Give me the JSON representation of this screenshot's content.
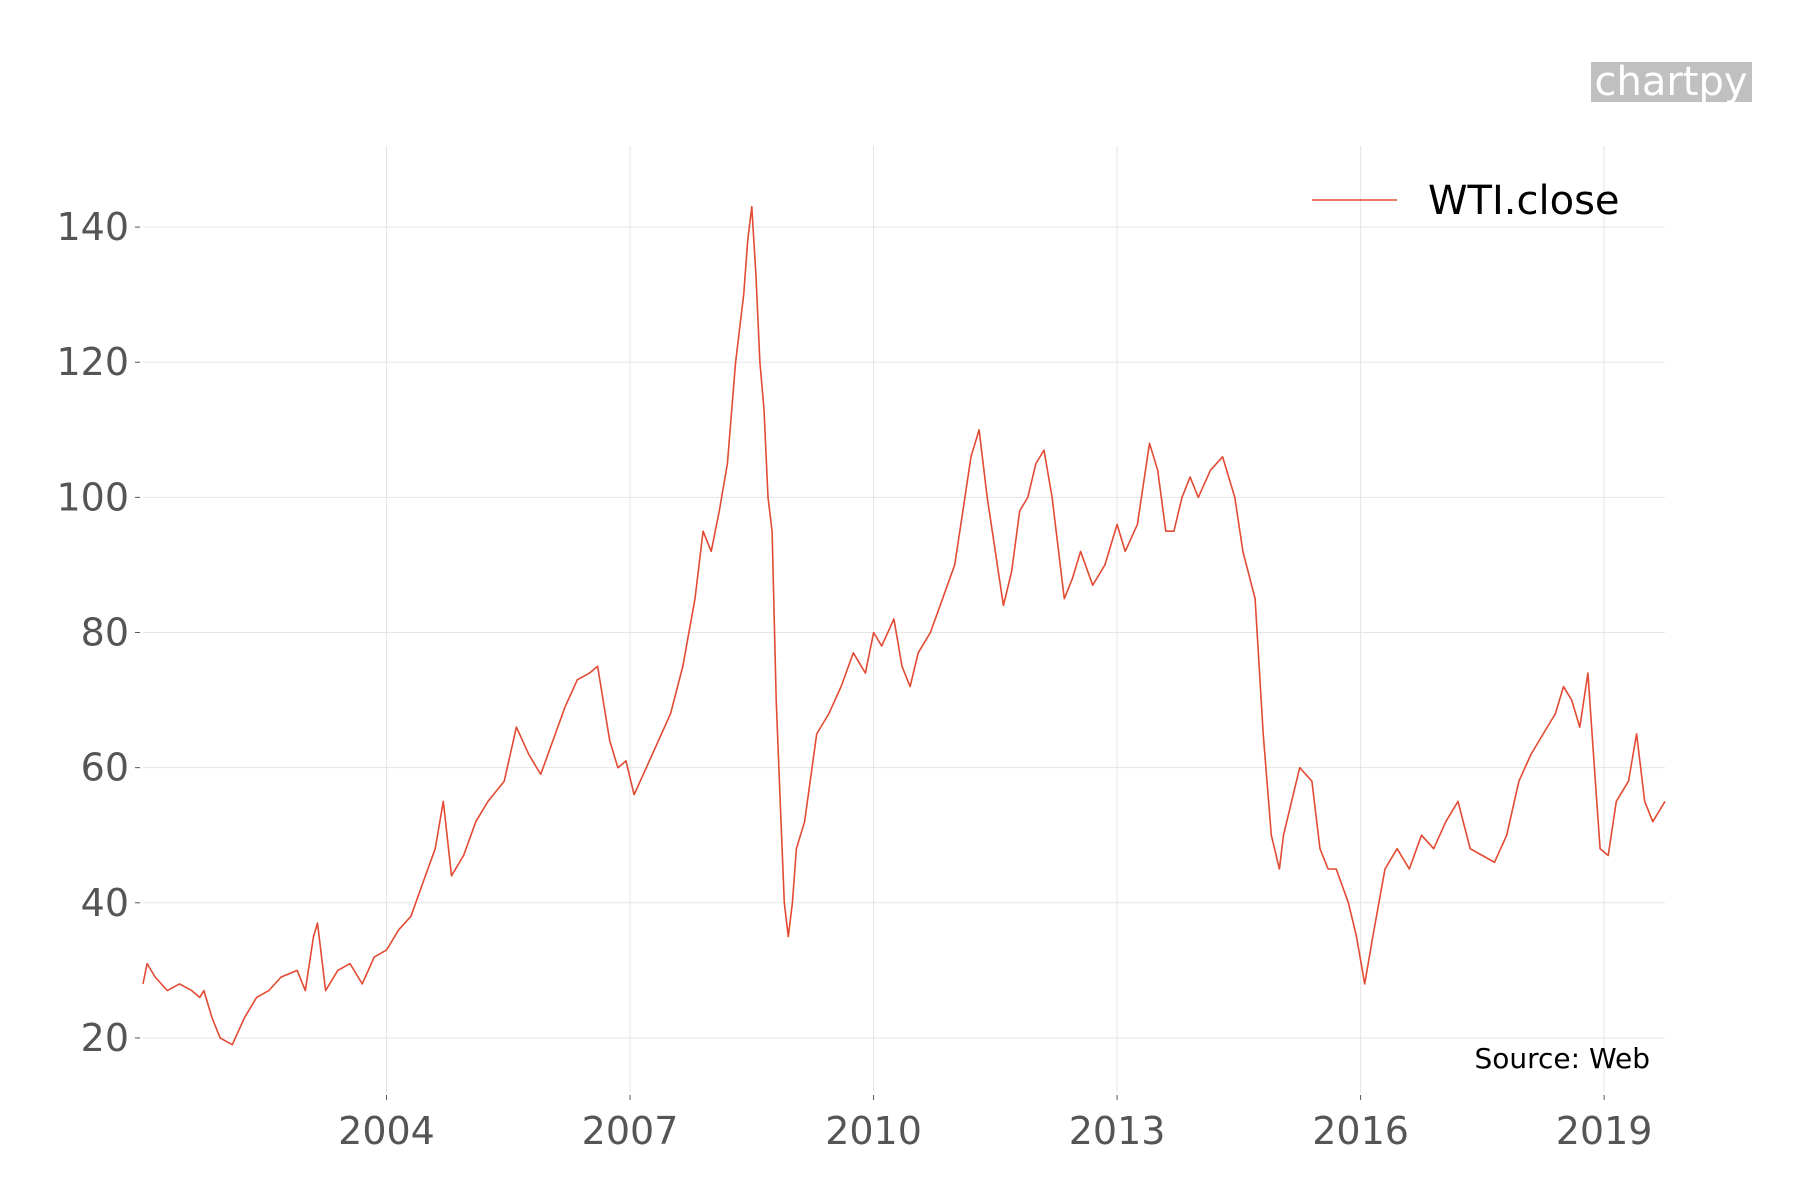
{
  "watermark": "chartpy",
  "source": "Source: Web",
  "colors": {
    "series": "#e34a33",
    "grid": "#e5e5e5",
    "tick_text": "#555555",
    "watermark_bg": "#c0c0c0"
  },
  "chart_data": {
    "type": "line",
    "title": "",
    "xlabel": "",
    "ylabel": "",
    "xlim": [
      2001.0,
      2019.75
    ],
    "ylim": [
      12,
      152
    ],
    "x_ticks": [
      2004,
      2007,
      2010,
      2013,
      2016,
      2019
    ],
    "x_tick_labels": [
      "2004",
      "2007",
      "2010",
      "2013",
      "2016",
      "2019"
    ],
    "y_ticks": [
      20,
      40,
      60,
      80,
      100,
      120,
      140
    ],
    "y_tick_labels": [
      "20",
      "40",
      "60",
      "80",
      "100",
      "120",
      "140"
    ],
    "grid": true,
    "legend": {
      "position": "top-right",
      "entries": [
        "WTI.close"
      ]
    },
    "series": [
      {
        "name": "WTI.close",
        "x": [
          2001.0,
          2001.05,
          2001.15,
          2001.3,
          2001.45,
          2001.6,
          2001.7,
          2001.75,
          2001.85,
          2001.95,
          2002.1,
          2002.25,
          2002.4,
          2002.55,
          2002.7,
          2002.9,
          2003.0,
          2003.1,
          2003.15,
          2003.25,
          2003.4,
          2003.55,
          2003.7,
          2003.85,
          2004.0,
          2004.15,
          2004.3,
          2004.45,
          2004.6,
          2004.7,
          2004.8,
          2004.95,
          2005.1,
          2005.25,
          2005.45,
          2005.6,
          2005.75,
          2005.9,
          2006.05,
          2006.2,
          2006.35,
          2006.5,
          2006.6,
          2006.75,
          2006.85,
          2006.95,
          2007.05,
          2007.2,
          2007.35,
          2007.5,
          2007.65,
          2007.8,
          2007.9,
          2008.0,
          2008.1,
          2008.2,
          2008.3,
          2008.4,
          2008.45,
          2008.5,
          2008.55,
          2008.6,
          2008.65,
          2008.7,
          2008.75,
          2008.8,
          2008.85,
          2008.9,
          2008.95,
          2009.0,
          2009.05,
          2009.15,
          2009.3,
          2009.45,
          2009.6,
          2009.75,
          2009.9,
          2010.0,
          2010.1,
          2010.25,
          2010.35,
          2010.45,
          2010.55,
          2010.7,
          2010.85,
          2011.0,
          2011.1,
          2011.2,
          2011.3,
          2011.4,
          2011.5,
          2011.6,
          2011.7,
          2011.8,
          2011.9,
          2012.0,
          2012.1,
          2012.2,
          2012.35,
          2012.45,
          2012.55,
          2012.7,
          2012.85,
          2013.0,
          2013.1,
          2013.25,
          2013.4,
          2013.5,
          2013.6,
          2013.7,
          2013.8,
          2013.9,
          2014.0,
          2014.15,
          2014.3,
          2014.45,
          2014.55,
          2014.7,
          2014.8,
          2014.9,
          2015.0,
          2015.05,
          2015.15,
          2015.25,
          2015.4,
          2015.5,
          2015.6,
          2015.7,
          2015.85,
          2015.95,
          2016.05,
          2016.15,
          2016.3,
          2016.45,
          2016.6,
          2016.75,
          2016.9,
          2017.05,
          2017.2,
          2017.35,
          2017.5,
          2017.65,
          2017.8,
          2017.95,
          2018.1,
          2018.25,
          2018.4,
          2018.5,
          2018.6,
          2018.7,
          2018.8,
          2018.88,
          2018.95,
          2019.05,
          2019.15,
          2019.3,
          2019.4,
          2019.5,
          2019.6,
          2019.75
        ],
        "y": [
          28,
          31,
          29,
          27,
          28,
          27,
          26,
          27,
          23,
          20,
          19,
          23,
          26,
          27,
          29,
          30,
          27,
          35,
          37,
          27,
          30,
          31,
          28,
          32,
          33,
          36,
          38,
          43,
          48,
          55,
          44,
          47,
          52,
          55,
          58,
          66,
          62,
          59,
          64,
          69,
          73,
          74,
          75,
          64,
          60,
          61,
          56,
          60,
          64,
          68,
          75,
          85,
          95,
          92,
          98,
          105,
          120,
          130,
          138,
          143,
          133,
          120,
          113,
          100,
          95,
          70,
          55,
          40,
          35,
          40,
          48,
          52,
          65,
          68,
          72,
          77,
          74,
          80,
          78,
          82,
          75,
          72,
          77,
          80,
          85,
          90,
          98,
          106,
          110,
          100,
          92,
          84,
          89,
          98,
          100,
          105,
          107,
          100,
          85,
          88,
          92,
          87,
          90,
          96,
          92,
          96,
          108,
          104,
          95,
          95,
          100,
          103,
          100,
          104,
          106,
          100,
          92,
          85,
          65,
          50,
          45,
          50,
          55,
          60,
          58,
          48,
          45,
          45,
          40,
          35,
          28,
          35,
          45,
          48,
          45,
          50,
          48,
          52,
          55,
          48,
          47,
          46,
          50,
          58,
          62,
          65,
          68,
          72,
          70,
          66,
          74,
          60,
          48,
          47,
          55,
          58,
          65,
          55,
          52,
          55
        ]
      }
    ]
  }
}
